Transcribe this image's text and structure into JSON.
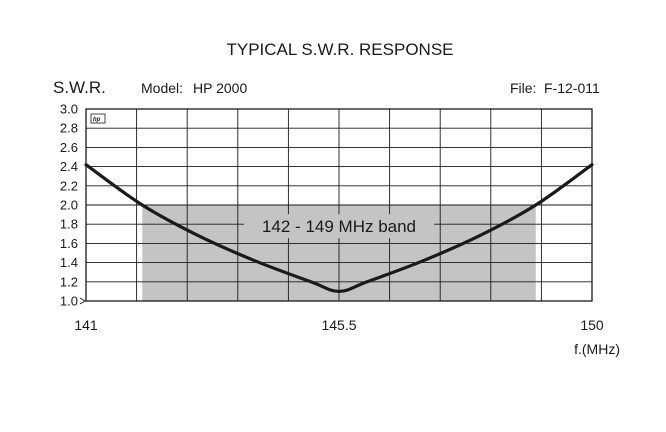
{
  "chart_data": {
    "type": "line",
    "title": "TYPICAL S.W.R. RESPONSE",
    "ylabel": "S.W.R.",
    "xlabel": "f.(MHz)",
    "model_label": "Model:",
    "model_value": "HP 2000",
    "file_label": "File:",
    "file_value": "F-12-011",
    "logo_text": "hp",
    "xlim": [
      141,
      150
    ],
    "ylim": [
      1.0,
      3.0
    ],
    "x_ticks": [
      141,
      145.5,
      150
    ],
    "x_tick_labels": [
      "141",
      "145.5",
      "150"
    ],
    "y_ticks": [
      1.0,
      1.2,
      1.4,
      1.6,
      1.8,
      2.0,
      2.2,
      2.4,
      2.6,
      2.8,
      3.0
    ],
    "y_tick_labels": [
      "1.0",
      "1.2",
      "1.4",
      "1.6",
      "1.8",
      "2.0",
      "2.2",
      "2.4",
      "2.6",
      "2.8",
      "3.0"
    ],
    "grid": true,
    "band": {
      "label": "142 - 149 MHz band",
      "x_start": 142,
      "x_end": 149,
      "y_top": 2.0,
      "color": "#c4c4c4"
    },
    "series": [
      {
        "color": "#1a1a1a",
        "x": [
          141,
          142,
          143,
          144,
          145,
          145.5,
          146,
          147,
          148,
          149,
          150
        ],
        "y": [
          2.42,
          2.0,
          1.68,
          1.42,
          1.2,
          1.1,
          1.2,
          1.42,
          1.68,
          2.0,
          2.42
        ]
      }
    ]
  }
}
